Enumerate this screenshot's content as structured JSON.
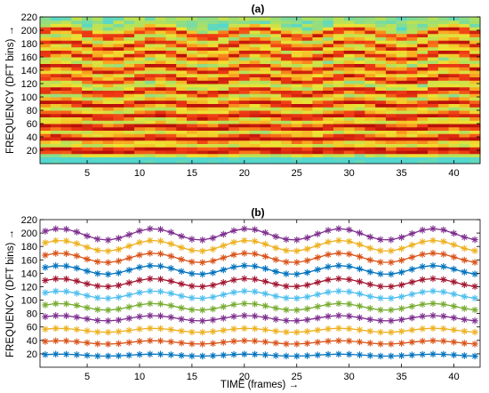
{
  "chart_data": [
    {
      "type": "heatmap",
      "title": "(a)",
      "xlabel": "",
      "ylabel": "FREQUENCY (DFT bins)",
      "ylabel_arrow": "→",
      "xlim": [
        0.5,
        42.5
      ],
      "ylim": [
        0,
        220
      ],
      "xticks": [
        "5",
        "10",
        "15",
        "20",
        "25",
        "30",
        "35",
        "40"
      ],
      "yticks": [
        "20",
        "40",
        "60",
        "80",
        "100",
        "120",
        "140",
        "160",
        "180",
        "200",
        "220"
      ],
      "frames": 42,
      "rows": 44,
      "harmonic_bands": [
        20,
        38,
        55,
        72,
        90,
        108,
        127,
        143,
        162,
        178,
        196
      ],
      "grid": false
    },
    {
      "type": "line",
      "title": "(b)",
      "xlabel": "TIME (frames)",
      "xlabel_arrow": "→",
      "ylabel": "FREQUENCY (DFT bins)",
      "ylabel_arrow": "→",
      "xlim": [
        0.5,
        42.5
      ],
      "ylim": [
        0,
        220
      ],
      "xticks": [
        "5",
        "10",
        "15",
        "20",
        "25",
        "30",
        "35",
        "40"
      ],
      "yticks": [
        "20",
        "40",
        "60",
        "80",
        "100",
        "120",
        "140",
        "160",
        "180",
        "200",
        "220"
      ],
      "marker": "asterisk",
      "grid": false,
      "series": [
        {
          "color": "#0072BD",
          "base": 18,
          "amp": 1.5
        },
        {
          "color": "#D95319",
          "base": 37,
          "amp": 2.5
        },
        {
          "color": "#EDB120",
          "base": 55,
          "amp": 3
        },
        {
          "color": "#7E2F8E",
          "base": 73,
          "amp": 4
        },
        {
          "color": "#77AC30",
          "base": 90,
          "amp": 5
        },
        {
          "color": "#4DBEEE",
          "base": 108,
          "amp": 5.5
        },
        {
          "color": "#A2142F",
          "base": 126,
          "amp": 6
        },
        {
          "color": "#0072BD",
          "base": 145,
          "amp": 6.5
        },
        {
          "color": "#D95319",
          "base": 163,
          "amp": 7
        },
        {
          "color": "#EDB120",
          "base": 181,
          "amp": 8
        },
        {
          "color": "#7E2F8E",
          "base": 198,
          "amp": 8.5
        }
      ]
    }
  ]
}
